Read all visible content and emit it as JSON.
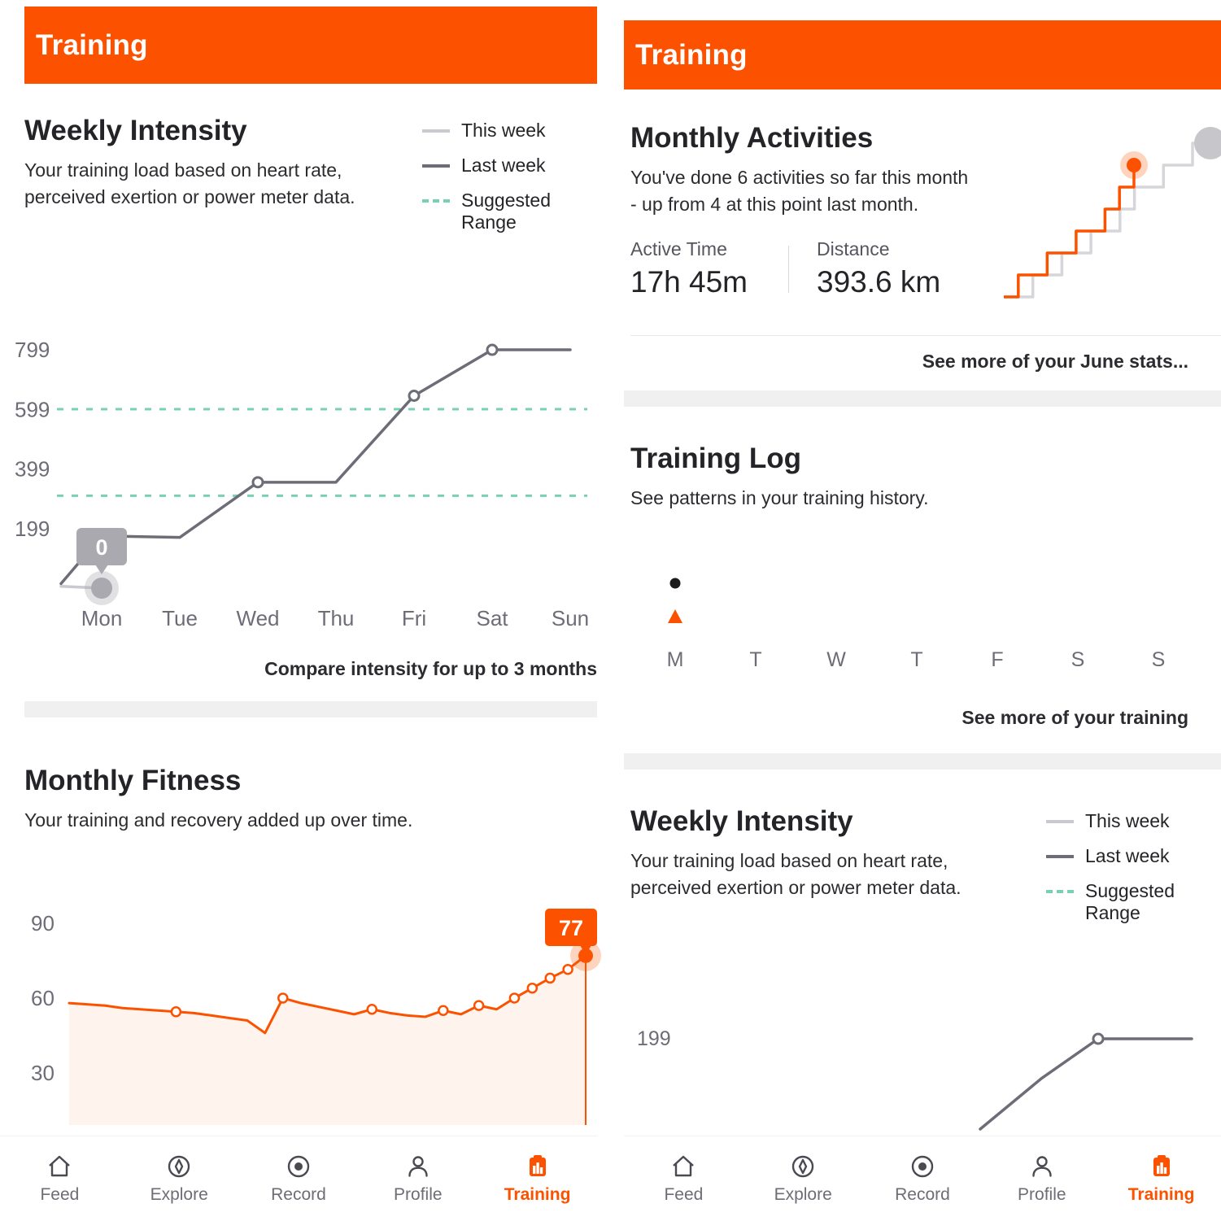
{
  "colors": {
    "accent": "#fc5200",
    "text": "#242428",
    "muted": "#6d6d78",
    "light_line": "#c9c9cf",
    "dark_line": "#6d6d78",
    "teal_dashed": "#79d0b2",
    "divider": "#f0f0f1",
    "tooltip_gray": "#a9a9af"
  },
  "left": {
    "header": {
      "title": "Training"
    },
    "weekly_intensity": {
      "title": "Weekly Intensity",
      "description": "Your training load based on heart rate, perceived exertion or power meter data.",
      "legend": {
        "this_week": "This week",
        "last_week": "Last week",
        "suggested_range": "Suggested Range"
      },
      "compare_link": "Compare intensity for up to 3 months"
    },
    "monthly_fitness": {
      "title": "Monthly Fitness",
      "description": "Your training and recovery added up over time."
    }
  },
  "right": {
    "header": {
      "title": "Training"
    },
    "monthly_activities": {
      "title": "Monthly Activities",
      "description": "You've done 6 activities so far this month - up from 4 at this point last month.",
      "active_time_label": "Active Time",
      "active_time_value": "17h 45m",
      "distance_label": "Distance",
      "distance_value": "393.6 km",
      "see_more_link": "See more of your June stats..."
    },
    "training_log": {
      "title": "Training Log",
      "description": "See patterns in your training history.",
      "see_more_link": "See more of your training"
    },
    "weekly_intensity": {
      "title": "Weekly Intensity",
      "description": "Your training load based on heart rate, perceived exertion or power meter data.",
      "legend": {
        "this_week": "This week",
        "last_week": "Last week",
        "suggested_range": "Suggested Range"
      }
    }
  },
  "nav": {
    "items": [
      {
        "label": "Feed",
        "icon": "home-icon",
        "active": false
      },
      {
        "label": "Explore",
        "icon": "compass-icon",
        "active": false
      },
      {
        "label": "Record",
        "icon": "record-icon",
        "active": false
      },
      {
        "label": "Profile",
        "icon": "profile-icon",
        "active": false
      },
      {
        "label": "Training",
        "icon": "training-icon",
        "active": true
      }
    ]
  },
  "chart_data": [
    {
      "id": "weekly-intensity-left",
      "type": "line",
      "title": "Weekly Intensity",
      "categories": [
        "Mon",
        "Tue",
        "Wed",
        "Thu",
        "Fri",
        "Sat",
        "Sun"
      ],
      "series": [
        {
          "name": "This week",
          "color": "#c9c9cf",
          "values": [
            0
          ]
        },
        {
          "name": "Last week",
          "color": "#6d6d78",
          "values": [
            175,
            170,
            355,
            355,
            645,
            799,
            799
          ]
        }
      ],
      "marker_indices": [
        2,
        4,
        5
      ],
      "suggested_range": [
        310,
        600
      ],
      "yticks": [
        199,
        399,
        599,
        799
      ],
      "ylim": [
        0,
        900
      ],
      "tooltip": {
        "label": "0",
        "x": "Mon",
        "series": "This week"
      },
      "grid": false,
      "legend_position": "top-right"
    },
    {
      "id": "monthly-fitness",
      "type": "area",
      "title": "Monthly Fitness",
      "values": [
        58,
        57.5,
        57,
        56,
        55.5,
        55,
        54.5,
        54,
        53,
        52,
        51,
        46,
        60,
        58,
        56.5,
        55,
        53.5,
        55.5,
        54,
        53,
        52.5,
        55,
        53.5,
        57,
        55.5,
        60,
        64,
        68,
        71.5,
        77
      ],
      "marker_indices": [
        6,
        12,
        17,
        21,
        23,
        25,
        26,
        27,
        28
      ],
      "yticks": [
        90,
        60,
        30
      ],
      "ylim": [
        0,
        100
      ],
      "tooltip": {
        "label": "77",
        "value": 77
      }
    },
    {
      "id": "monthly-activities",
      "type": "step",
      "title": "Monthly Activities",
      "series": [
        {
          "name": "Last month",
          "color": "#d6d6da",
          "cumulative": [
            0,
            0,
            1,
            1,
            2,
            2,
            3,
            3,
            4,
            5,
            5,
            6,
            6,
            7
          ]
        },
        {
          "name": "This month",
          "color": "#fc5200",
          "cumulative": [
            0,
            1,
            1,
            2,
            2,
            3,
            3,
            4,
            5,
            6
          ]
        }
      ],
      "this_month_total": 6,
      "last_month_at_this_point": 4,
      "ymax": 8
    },
    {
      "id": "training-log",
      "type": "scatter",
      "title": "Training Log",
      "categories": [
        "M",
        "T",
        "W",
        "T",
        "F",
        "S",
        "S"
      ],
      "points": [
        {
          "day": "M",
          "marks": [
            "dot",
            "triangle"
          ]
        }
      ]
    },
    {
      "id": "weekly-intensity-right",
      "type": "line",
      "title": "Weekly Intensity",
      "partial": true,
      "series": [
        {
          "name": "Last week",
          "color": "#6d6d78",
          "values": [
            20,
            120,
            199,
            199
          ]
        }
      ],
      "marker_indices": [
        2
      ],
      "yticks": [
        199
      ]
    }
  ]
}
